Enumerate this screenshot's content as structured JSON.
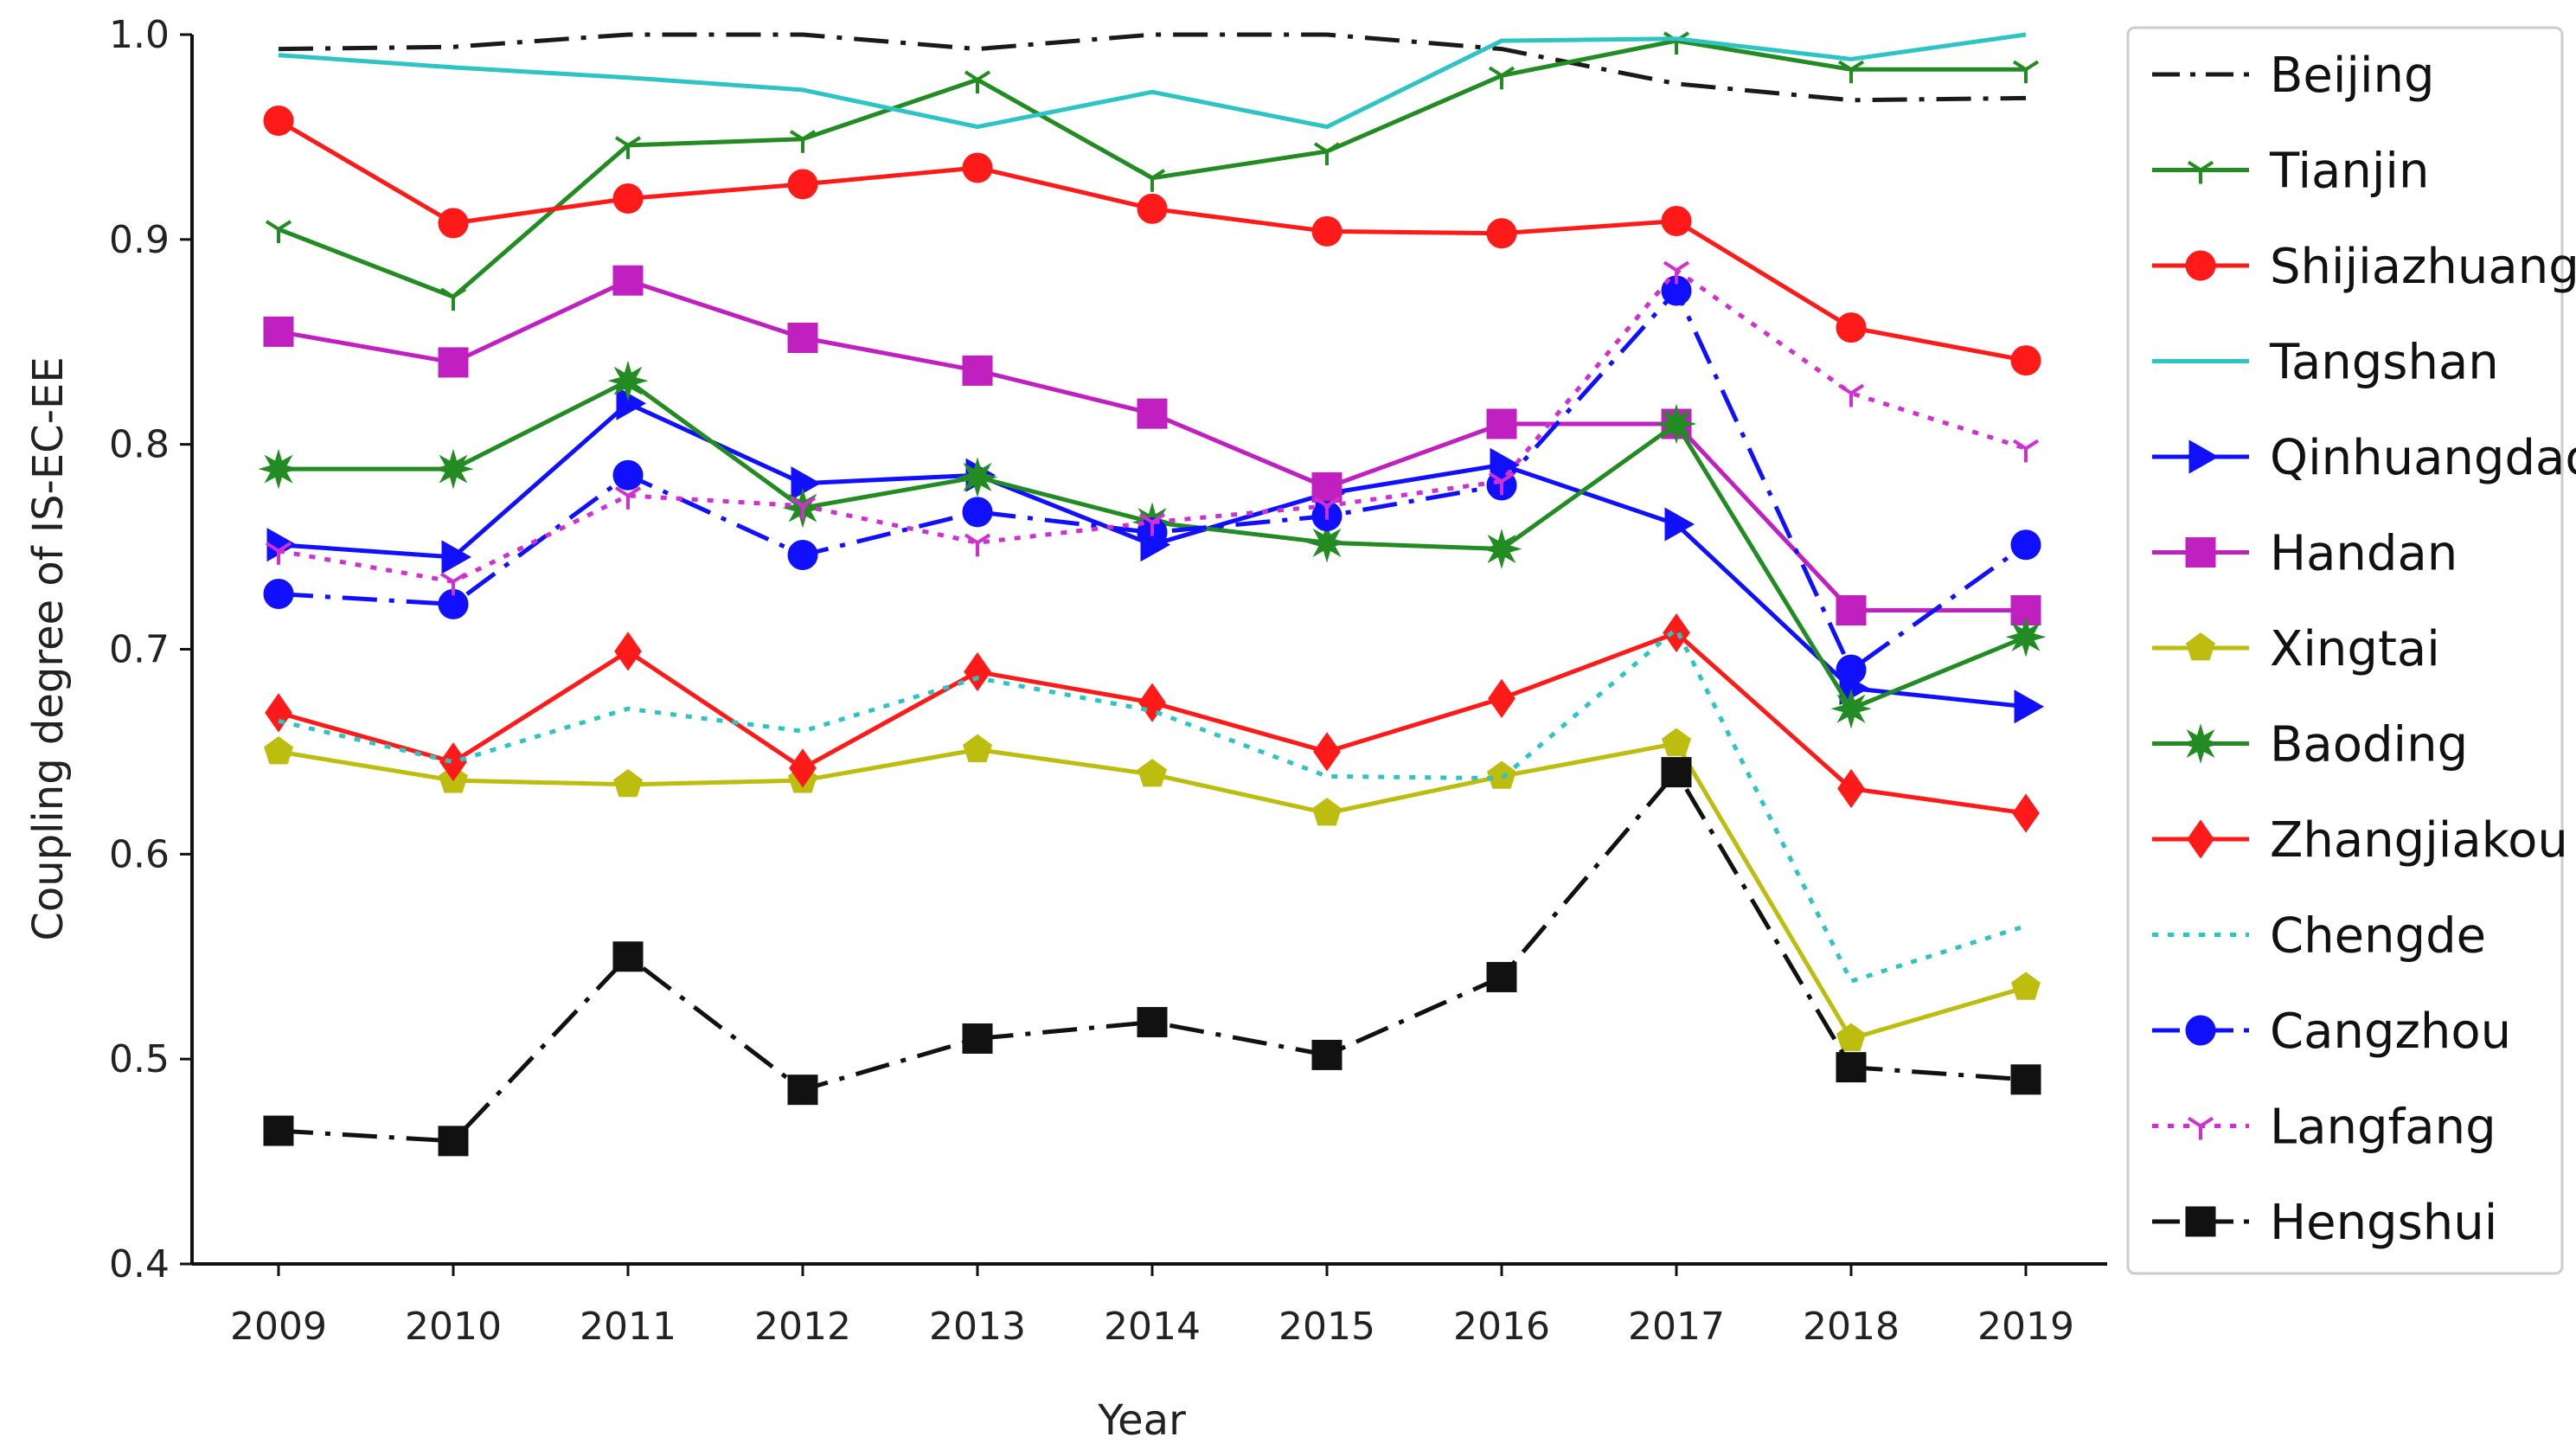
{
  "chart_data": {
    "type": "line",
    "title": "",
    "xlabel": "Year",
    "ylabel": "Coupling degree of IS-EC-EE",
    "ylim": [
      0.4,
      1.0
    ],
    "yticks": [
      "0.4",
      "0.5",
      "0.6",
      "0.7",
      "0.8",
      "0.9",
      "1.0"
    ],
    "grid": false,
    "legend_position": "right",
    "categories": [
      "2009",
      "2010",
      "2011",
      "2012",
      "2013",
      "2014",
      "2015",
      "2016",
      "2017",
      "2018",
      "2019"
    ],
    "series": [
      {
        "name": "Beijing",
        "color": "#1a1a1a",
        "dash": "dashdot",
        "marker": "none",
        "values": [
          0.993,
          0.994,
          1.0,
          1.0,
          0.993,
          1.0,
          1.0,
          0.993,
          0.976,
          0.968,
          0.969
        ]
      },
      {
        "name": "Tianjin",
        "color": "#228b22",
        "dash": "solid",
        "marker": "tri-down",
        "values": [
          0.905,
          0.872,
          0.946,
          0.949,
          0.978,
          0.93,
          0.943,
          0.98,
          0.997,
          0.983,
          0.983
        ]
      },
      {
        "name": "Shijiazhuang",
        "color": "#ff1a1a",
        "dash": "solid",
        "marker": "circle",
        "values": [
          0.958,
          0.908,
          0.92,
          0.927,
          0.935,
          0.915,
          0.904,
          0.903,
          0.909,
          0.857,
          0.841
        ]
      },
      {
        "name": "Tangshan",
        "color": "#2ec4c4",
        "dash": "solid",
        "marker": "none",
        "values": [
          0.99,
          0.984,
          0.979,
          0.973,
          0.955,
          0.972,
          0.955,
          0.997,
          0.998,
          0.988,
          1.0
        ]
      },
      {
        "name": "Qinhuangdao",
        "color": "#1010ff",
        "dash": "solid",
        "marker": "tri-right",
        "values": [
          0.751,
          0.745,
          0.82,
          0.781,
          0.785,
          0.751,
          0.776,
          0.79,
          0.761,
          0.681,
          0.672
        ]
      },
      {
        "name": "Handan",
        "color": "#c020c0",
        "dash": "solid",
        "marker": "square",
        "values": [
          0.855,
          0.84,
          0.88,
          0.852,
          0.836,
          0.815,
          0.779,
          0.81,
          0.81,
          0.719,
          0.719
        ]
      },
      {
        "name": "Xingtai",
        "color": "#bdbd10",
        "dash": "solid",
        "marker": "pentagon",
        "values": [
          0.65,
          0.636,
          0.634,
          0.636,
          0.651,
          0.639,
          0.62,
          0.638,
          0.654,
          0.51,
          0.535
        ]
      },
      {
        "name": "Baoding",
        "color": "#228b22",
        "dash": "solid",
        "marker": "star",
        "values": [
          0.788,
          0.788,
          0.831,
          0.769,
          0.784,
          0.762,
          0.752,
          0.749,
          0.81,
          0.671,
          0.706
        ]
      },
      {
        "name": "Zhangjiakou",
        "color": "#ff1a1a",
        "dash": "solid",
        "marker": "diamond",
        "values": [
          0.669,
          0.645,
          0.699,
          0.642,
          0.689,
          0.674,
          0.65,
          0.676,
          0.708,
          0.632,
          0.62
        ]
      },
      {
        "name": "Chengde",
        "color": "#2ec4c4",
        "dash": "dotted",
        "marker": "none",
        "values": [
          0.665,
          0.645,
          0.671,
          0.66,
          0.686,
          0.67,
          0.638,
          0.637,
          0.71,
          0.538,
          0.565
        ]
      },
      {
        "name": "Cangzhou",
        "color": "#1010ff",
        "dash": "dashdot",
        "marker": "circle",
        "values": [
          0.727,
          0.722,
          0.785,
          0.746,
          0.767,
          0.757,
          0.765,
          0.78,
          0.875,
          0.69,
          0.751
        ]
      },
      {
        "name": "Langfang",
        "color": "#d030d0",
        "dash": "dotted",
        "marker": "tri-down",
        "values": [
          0.748,
          0.733,
          0.775,
          0.77,
          0.752,
          0.762,
          0.77,
          0.782,
          0.885,
          0.825,
          0.798
        ]
      },
      {
        "name": "Hengshui",
        "color": "#111111",
        "dash": "dashdot",
        "marker": "square",
        "values": [
          0.465,
          0.46,
          0.55,
          0.485,
          0.51,
          0.518,
          0.502,
          0.54,
          0.64,
          0.496,
          0.49
        ]
      }
    ]
  }
}
